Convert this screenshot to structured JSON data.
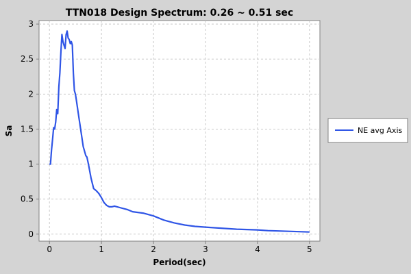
{
  "chart_data": {
    "type": "line",
    "title": "TTN018 Design Spectrum: 0.26 ~ 0.51 sec",
    "xlabel": "Period(sec)",
    "ylabel": "Sa",
    "xlim": [
      -0.2,
      5.2
    ],
    "ylim": [
      -0.1,
      3.05
    ],
    "xticks": [
      0,
      1,
      2,
      3,
      4,
      5
    ],
    "yticks": [
      0,
      0.5,
      1,
      1.5,
      2,
      2.5,
      3
    ],
    "xtick_labels": [
      "0",
      "1",
      "2",
      "3",
      "4",
      "5"
    ],
    "ytick_labels": [
      "0",
      "0.5",
      "1",
      "1.5",
      "2",
      "2.5",
      "3"
    ],
    "grid": true,
    "legend_position": "right",
    "series": [
      {
        "name": "NE avg Axis",
        "color": "#2f55e6",
        "x": [
          0,
          0.02,
          0.04,
          0.06,
          0.08,
          0.1,
          0.12,
          0.14,
          0.16,
          0.18,
          0.2,
          0.22,
          0.24,
          0.26,
          0.28,
          0.3,
          0.32,
          0.34,
          0.36,
          0.38,
          0.4,
          0.42,
          0.44,
          0.46,
          0.48,
          0.5,
          0.52,
          0.55,
          0.6,
          0.65,
          0.7,
          0.72,
          0.75,
          0.8,
          0.85,
          0.9,
          0.95,
          1.0,
          1.05,
          1.1,
          1.15,
          1.2,
          1.25,
          1.3,
          1.4,
          1.5,
          1.6,
          1.8,
          2.0,
          2.2,
          2.4,
          2.6,
          2.8,
          3.0,
          3.2,
          3.4,
          3.6,
          3.8,
          4.0,
          4.2,
          4.4,
          4.6,
          4.8,
          5.0
        ],
        "y": [
          1.0,
          1.0,
          1.2,
          1.35,
          1.52,
          1.5,
          1.6,
          1.78,
          1.72,
          2.1,
          2.3,
          2.6,
          2.85,
          2.75,
          2.7,
          2.65,
          2.85,
          2.9,
          2.8,
          2.78,
          2.72,
          2.75,
          2.7,
          2.3,
          2.05,
          2.0,
          1.9,
          1.75,
          1.5,
          1.25,
          1.12,
          1.1,
          1.0,
          0.8,
          0.65,
          0.62,
          0.58,
          0.52,
          0.45,
          0.41,
          0.39,
          0.39,
          0.4,
          0.39,
          0.37,
          0.35,
          0.32,
          0.3,
          0.26,
          0.2,
          0.16,
          0.13,
          0.11,
          0.1,
          0.09,
          0.08,
          0.07,
          0.065,
          0.06,
          0.05,
          0.045,
          0.04,
          0.035,
          0.03
        ]
      }
    ]
  }
}
